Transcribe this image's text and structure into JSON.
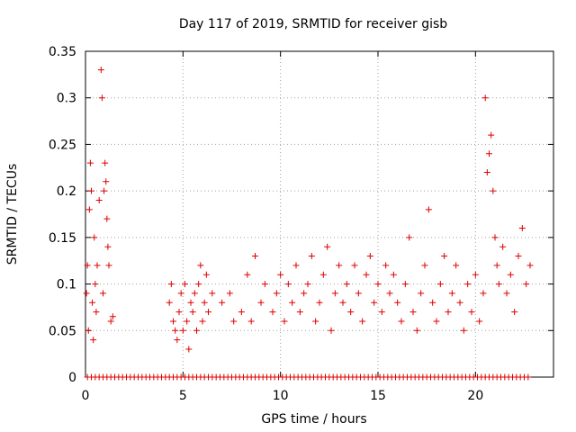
{
  "chart_data": {
    "type": "scatter",
    "title": "Day 117 of 2019, SRMTID for receiver gisb",
    "xlabel": "GPS time / hours",
    "ylabel": "SRMTID / TECUs",
    "xlim": [
      0,
      24
    ],
    "ylim": [
      0,
      0.35
    ],
    "x_ticks": [
      0,
      5,
      10,
      15,
      20
    ],
    "x_tick_labels": [
      "0",
      "5",
      "10",
      "15",
      "20"
    ],
    "y_ticks": [
      0,
      0.05,
      0.1,
      0.15,
      0.2,
      0.25,
      0.3,
      0.35
    ],
    "y_tick_labels": [
      "0",
      "0.05",
      "0.1",
      "0.15",
      "0.2",
      "0.25",
      "0.3",
      "0.35"
    ],
    "grid": true,
    "marker": "+",
    "color": "#dd0000",
    "series": [
      {
        "name": "SRMTID",
        "x": [
          0.05,
          0.1,
          0.15,
          0.2,
          0.25,
          0.3,
          0.35,
          0.4,
          0.45,
          0.5,
          0.55,
          0.6,
          0.7,
          0.8,
          0.85,
          0.9,
          0.95,
          1.0,
          1.05,
          1.1,
          1.15,
          1.2,
          1.3,
          1.4,
          4.3,
          4.4,
          4.5,
          4.6,
          4.7,
          4.8,
          4.9,
          5.0,
          5.1,
          5.2,
          5.3,
          5.4,
          5.5,
          5.6,
          5.7,
          5.8,
          5.9,
          6.0,
          6.1,
          6.2,
          6.3,
          6.5,
          7.0,
          7.4,
          7.6,
          8.0,
          8.3,
          8.5,
          8.7,
          9.0,
          9.2,
          9.6,
          9.8,
          10.0,
          10.2,
          10.4,
          10.6,
          10.8,
          11.0,
          11.2,
          11.4,
          11.6,
          11.8,
          12.0,
          12.2,
          12.4,
          12.6,
          12.8,
          13.0,
          13.2,
          13.4,
          13.6,
          13.8,
          14.0,
          14.2,
          14.4,
          14.6,
          14.8,
          15.0,
          15.2,
          15.4,
          15.6,
          15.8,
          16.0,
          16.2,
          16.4,
          16.6,
          16.8,
          17.0,
          17.2,
          17.4,
          17.6,
          17.8,
          18.0,
          18.2,
          18.4,
          18.6,
          18.8,
          19.0,
          19.2,
          19.4,
          19.6,
          19.8,
          20.0,
          20.2,
          20.4,
          20.5,
          20.6,
          20.7,
          20.8,
          20.9,
          21.0,
          21.1,
          21.2,
          21.4,
          21.6,
          21.8,
          22.0,
          22.2,
          22.4,
          22.6,
          22.8
        ],
        "y": [
          0.09,
          0.12,
          0.05,
          0.18,
          0.23,
          0.2,
          0.08,
          0.04,
          0.15,
          0.1,
          0.07,
          0.12,
          0.19,
          0.33,
          0.3,
          0.09,
          0.2,
          0.23,
          0.21,
          0.17,
          0.14,
          0.12,
          0.06,
          0.065,
          0.08,
          0.1,
          0.06,
          0.05,
          0.04,
          0.07,
          0.09,
          0.05,
          0.1,
          0.06,
          0.03,
          0.08,
          0.07,
          0.09,
          0.05,
          0.1,
          0.12,
          0.06,
          0.08,
          0.11,
          0.07,
          0.09,
          0.08,
          0.09,
          0.06,
          0.07,
          0.11,
          0.06,
          0.13,
          0.08,
          0.1,
          0.07,
          0.09,
          0.11,
          0.06,
          0.1,
          0.08,
          0.12,
          0.07,
          0.09,
          0.1,
          0.13,
          0.06,
          0.08,
          0.11,
          0.14,
          0.05,
          0.09,
          0.12,
          0.08,
          0.1,
          0.07,
          0.12,
          0.09,
          0.06,
          0.11,
          0.13,
          0.08,
          0.1,
          0.07,
          0.12,
          0.09,
          0.11,
          0.08,
          0.06,
          0.1,
          0.15,
          0.07,
          0.05,
          0.09,
          0.12,
          0.18,
          0.08,
          0.06,
          0.1,
          0.13,
          0.07,
          0.09,
          0.12,
          0.08,
          0.05,
          0.1,
          0.07,
          0.11,
          0.06,
          0.09,
          0.3,
          0.22,
          0.24,
          0.26,
          0.2,
          0.15,
          0.12,
          0.1,
          0.14,
          0.09,
          0.11,
          0.07,
          0.13,
          0.16,
          0.1,
          0.12
        ]
      }
    ],
    "zero_points_x": [
      0.1,
      0.3,
      0.5,
      0.7,
      0.9,
      1.1,
      1.3,
      1.5,
      1.7,
      1.9,
      2.1,
      2.3,
      2.5,
      2.7,
      2.9,
      3.1,
      3.3,
      3.5,
      3.7,
      3.9,
      4.1,
      4.3,
      4.5,
      4.7,
      4.9,
      5.1,
      5.3,
      5.5,
      5.7,
      5.9,
      6.1,
      6.3,
      6.5,
      6.7,
      6.9,
      7.1,
      7.3,
      7.5,
      7.7,
      7.9,
      8.1,
      8.3,
      8.5,
      8.7,
      8.9,
      9.1,
      9.3,
      9.5,
      9.7,
      9.9,
      10.1,
      10.3,
      10.5,
      10.7,
      10.9,
      11.1,
      11.3,
      11.5,
      11.7,
      11.9,
      12.1,
      12.3,
      12.5,
      12.7,
      12.9,
      13.1,
      13.3,
      13.5,
      13.7,
      13.9,
      14.1,
      14.3,
      14.5,
      14.7,
      14.9,
      15.1,
      15.3,
      15.5,
      15.7,
      15.9,
      16.1,
      16.3,
      16.5,
      16.7,
      16.9,
      17.1,
      17.3,
      17.5,
      17.7,
      17.9,
      18.1,
      18.3,
      18.5,
      18.7,
      18.9,
      19.1,
      19.3,
      19.5,
      19.7,
      19.9,
      20.1,
      20.3,
      20.5,
      20.7,
      20.9,
      21.1,
      21.3,
      21.5,
      21.7,
      21.9,
      22.1,
      22.3,
      22.5,
      22.7
    ]
  }
}
